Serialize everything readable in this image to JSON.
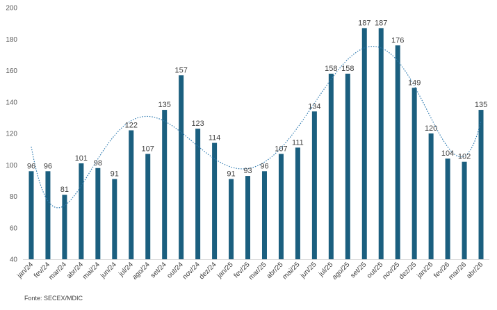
{
  "chart_data": {
    "type": "bar",
    "categories": [
      "jan/24",
      "fev/24",
      "mar/24",
      "abr/24",
      "mai/24",
      "jun/24",
      "jul/24",
      "ago/24",
      "set/24",
      "out/24",
      "nov/24",
      "dez/24",
      "jan/25",
      "fev/25",
      "mar/25",
      "abr/25",
      "mai/25",
      "jun/25",
      "jul/25",
      "ago/25",
      "set/25",
      "out/25",
      "nov/25",
      "dez/25",
      "jan/26",
      "fev/26",
      "mar/26",
      "abr/26"
    ],
    "values": [
      96,
      96,
      81,
      101,
      98,
      91,
      122,
      107,
      135,
      157,
      123,
      114,
      91,
      93,
      96,
      107,
      111,
      134,
      158,
      158,
      187,
      187,
      176,
      149,
      120,
      104,
      102,
      135
    ],
    "data_labels": [
      "96",
      "96",
      "81",
      "101",
      "98",
      "91",
      "122",
      "107",
      "135",
      "157",
      "123",
      "114",
      "91",
      "93",
      "96",
      "107",
      "111",
      "134",
      "158",
      "158",
      "187",
      "187",
      "176",
      "149",
      "120",
      "104",
      "102",
      "135"
    ],
    "y_ticks": [
      "40",
      "60",
      "80",
      "100",
      "120",
      "140",
      "160",
      "180",
      "200"
    ],
    "ylim": [
      40,
      200
    ],
    "trendline": {
      "type": "polynomial",
      "style": "dotted"
    },
    "grid": false,
    "bar_color": "#1b5f7f",
    "trend_color": "#2e7ab0"
  },
  "source": "Fonte: SECEX/MDIC"
}
